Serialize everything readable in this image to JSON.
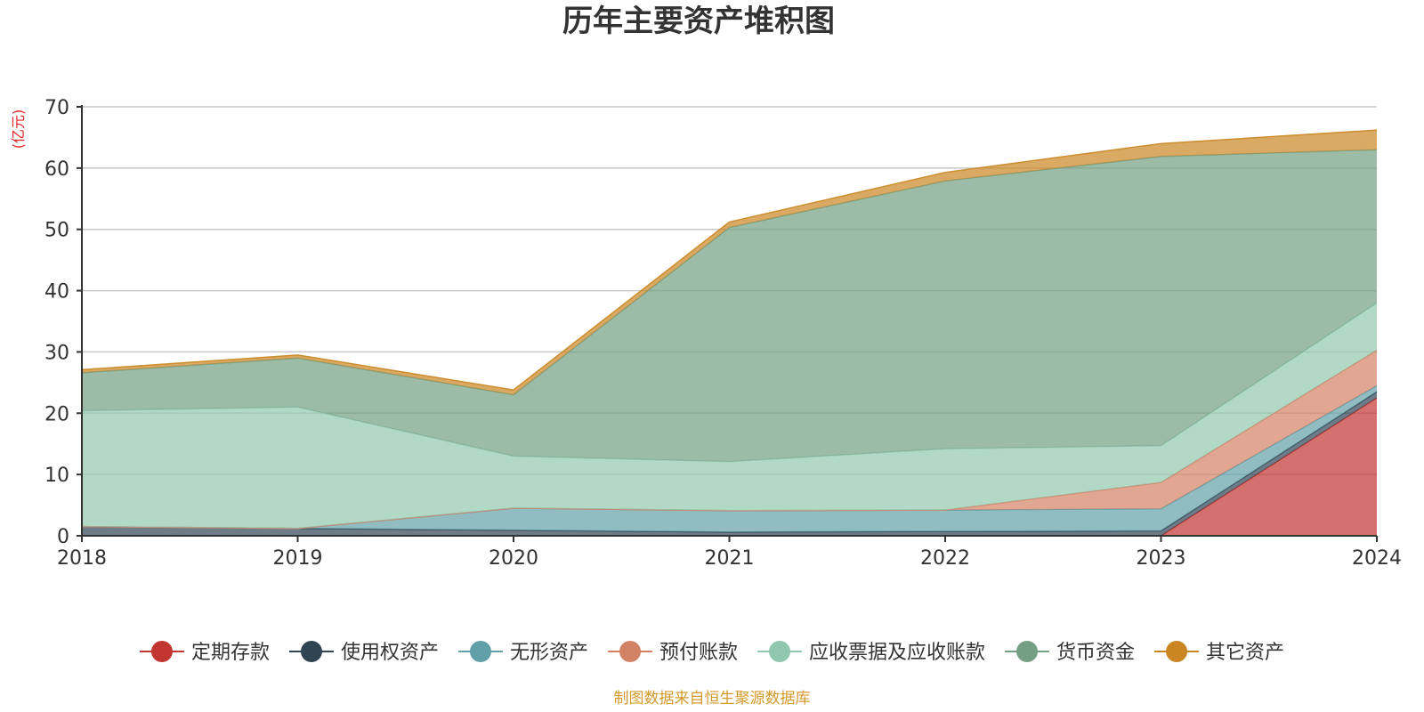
{
  "chart_data": {
    "type": "area",
    "title": "历年主要资产堆积图",
    "unit": "(亿元)",
    "source": "制图数据来自恒生聚源数据库",
    "x": [
      "2018",
      "2019",
      "2020",
      "2021",
      "2022",
      "2023",
      "2024"
    ],
    "ylim": [
      0,
      70
    ],
    "yticks": [
      0,
      10,
      20,
      30,
      40,
      50,
      60,
      70
    ],
    "grid": true,
    "legend_position": "bottom",
    "series": [
      {
        "name": "定期存款",
        "color": "#c23531",
        "values": [
          0,
          0,
          0,
          0,
          0,
          0,
          22.5
        ]
      },
      {
        "name": "使用权资产",
        "color": "#2f4554",
        "values": [
          1.5,
          1.2,
          0.9,
          0.6,
          0.7,
          0.8,
          1.0
        ]
      },
      {
        "name": "无形资产",
        "color": "#61a0a8",
        "values": [
          0,
          0,
          3.6,
          3.5,
          3.5,
          3.6,
          1.0
        ]
      },
      {
        "name": "预付账款",
        "color": "#d48265",
        "values": [
          0,
          0,
          0,
          0,
          0,
          4.3,
          5.8
        ]
      },
      {
        "name": "应收票据及应收账款",
        "color": "#91c7ae",
        "values": [
          18.9,
          19.8,
          8.5,
          8.0,
          10.0,
          6.0,
          7.7
        ]
      },
      {
        "name": "货币资金",
        "color": "#749f83",
        "values": [
          6.2,
          8.0,
          10.0,
          38.2,
          43.7,
          47.2,
          25.0
        ]
      },
      {
        "name": "其它资产",
        "color": "#ca8622",
        "values": [
          0.5,
          0.5,
          0.8,
          0.9,
          1.4,
          2.1,
          3.2
        ]
      }
    ]
  }
}
